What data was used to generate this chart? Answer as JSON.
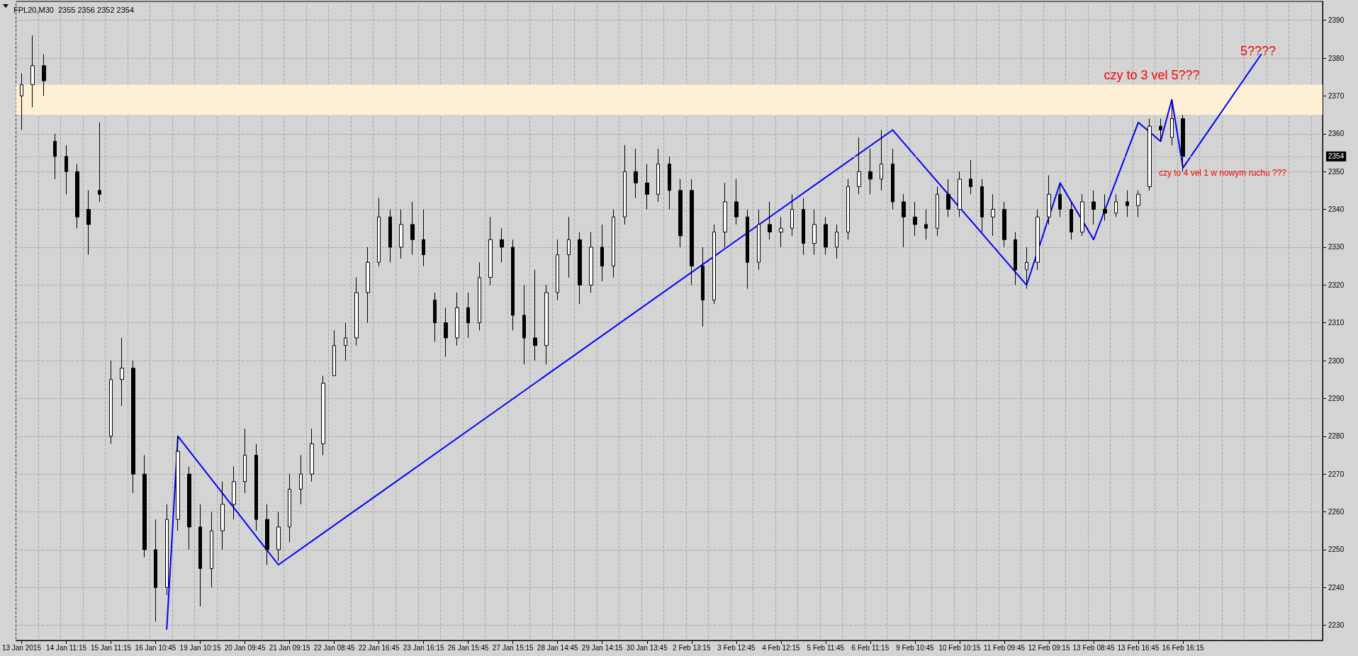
{
  "chart_data": {
    "type": "candlestick",
    "title": "FPL20,M30  2355 2356 2352 2354",
    "categories": [
      "13 Jan 2015",
      null,
      null,
      null,
      "14 Jan 11:15",
      null,
      null,
      null,
      "15 Jan 11:15",
      null,
      null,
      null,
      "16 Jan 10:45",
      null,
      null,
      null,
      "19 Jan 10:15",
      null,
      null,
      null,
      "20 Jan 09:45",
      null,
      null,
      null,
      "21 Jan 09:15",
      null,
      null,
      null,
      "22 Jan 08:45",
      null,
      null,
      null,
      "22 Jan 16:45",
      null,
      null,
      null,
      "23 Jan 16:15",
      null,
      null,
      null,
      "26 Jan 15:45",
      null,
      null,
      null,
      "27 Jan 15:15",
      null,
      null,
      null,
      "28 Jan 14:45",
      null,
      null,
      null,
      "29 Jan 14:15",
      null,
      null,
      null,
      "30 Jan 13:45",
      null,
      null,
      null,
      "2 Feb 13:15",
      null,
      null,
      null,
      "3 Feb 12:45",
      null,
      null,
      null,
      "4 Feb 12:15",
      null,
      null,
      null,
      "5 Feb 11:45",
      null,
      null,
      null,
      "6 Feb 11:15",
      null,
      null,
      null,
      "9 Feb 10:45",
      null,
      null,
      null,
      "10 Feb 10:15",
      null,
      null,
      null,
      "11 Feb 09:45",
      null,
      null,
      null,
      "12 Feb 09:15",
      null,
      null,
      null,
      "13 Feb 08:45",
      null,
      null,
      null,
      "13 Feb 16:45",
      null,
      null,
      null,
      "16 Feb 16:15",
      null,
      null,
      null,
      null,
      null,
      null,
      null,
      null,
      null,
      null,
      null,
      null
    ],
    "series": [
      {
        "color": "#000000",
        "ohlc": [
          [
            2370,
            2376,
            2361,
            2373
          ],
          [
            2373,
            2386,
            2367,
            2378
          ],
          [
            2378,
            2381,
            2370,
            2374
          ],
          [
            2358,
            2360,
            2348,
            2354
          ],
          [
            2354,
            2357,
            2344,
            2350
          ],
          [
            2350,
            2352,
            2335,
            2338
          ],
          [
            2340,
            2345,
            2328,
            2336
          ],
          [
            2345,
            2363,
            2342,
            2344
          ],
          [
            2280,
            2300,
            2278,
            2295
          ],
          [
            2295,
            2306,
            2288,
            2298
          ],
          [
            2298,
            2300,
            2265,
            2270
          ],
          [
            2270,
            2275,
            2248,
            2250
          ],
          [
            2250,
            2258,
            2231,
            2240
          ],
          [
            2240,
            2262,
            2238,
            2258
          ],
          [
            2258,
            2280,
            2255,
            2276
          ],
          [
            2270,
            2272,
            2250,
            2256
          ],
          [
            2256,
            2262,
            2235,
            2245
          ],
          [
            2245,
            2260,
            2240,
            2255
          ],
          [
            2255,
            2268,
            2250,
            2262
          ],
          [
            2262,
            2272,
            2258,
            2268
          ],
          [
            2268,
            2282,
            2265,
            2275
          ],
          [
            2275,
            2278,
            2255,
            2258
          ],
          [
            2258,
            2262,
            2246,
            2250
          ],
          [
            2250,
            2260,
            2247,
            2256
          ],
          [
            2256,
            2270,
            2252,
            2266
          ],
          [
            2266,
            2275,
            2262,
            2270
          ],
          [
            2270,
            2282,
            2268,
            2278
          ],
          [
            2278,
            2296,
            2275,
            2294
          ],
          [
            2296,
            2308,
            2296,
            2304
          ],
          [
            2304,
            2310,
            2300,
            2306
          ],
          [
            2306,
            2322,
            2304,
            2318
          ],
          [
            2318,
            2330,
            2310,
            2326
          ],
          [
            2326,
            2343,
            2325,
            2338
          ],
          [
            2338,
            2340,
            2326,
            2330
          ],
          [
            2330,
            2340,
            2327,
            2336
          ],
          [
            2336,
            2342,
            2328,
            2332
          ],
          [
            2332,
            2340,
            2325,
            2328
          ],
          [
            2316,
            2318,
            2305,
            2310
          ],
          [
            2310,
            2314,
            2301,
            2306
          ],
          [
            2306,
            2318,
            2304,
            2314
          ],
          [
            2314,
            2318,
            2306,
            2310
          ],
          [
            2310,
            2326,
            2308,
            2322
          ],
          [
            2322,
            2338,
            2320,
            2332
          ],
          [
            2332,
            2335,
            2326,
            2330
          ],
          [
            2330,
            2332,
            2308,
            2312
          ],
          [
            2312,
            2320,
            2299,
            2306
          ],
          [
            2306,
            2324,
            2300,
            2304
          ],
          [
            2304,
            2320,
            2299,
            2318
          ],
          [
            2318,
            2332,
            2316,
            2328
          ],
          [
            2328,
            2338,
            2322,
            2332
          ],
          [
            2332,
            2334,
            2315,
            2320
          ],
          [
            2320,
            2334,
            2318,
            2330
          ],
          [
            2330,
            2336,
            2321,
            2325
          ],
          [
            2325,
            2340,
            2322,
            2338
          ],
          [
            2338,
            2357,
            2336,
            2350
          ],
          [
            2350,
            2356,
            2343,
            2347
          ],
          [
            2347,
            2352,
            2340,
            2344
          ],
          [
            2344,
            2356,
            2342,
            2352
          ],
          [
            2352,
            2354,
            2340,
            2345
          ],
          [
            2345,
            2348,
            2330,
            2333
          ],
          [
            2345,
            2348,
            2320,
            2325
          ],
          [
            2325,
            2330,
            2309,
            2316
          ],
          [
            2316,
            2336,
            2315,
            2334
          ],
          [
            2334,
            2347,
            2330,
            2342
          ],
          [
            2342,
            2348,
            2336,
            2338
          ],
          [
            2338,
            2340,
            2319,
            2326
          ],
          [
            2326,
            2340,
            2324,
            2336
          ],
          [
            2336,
            2342,
            2332,
            2334
          ],
          [
            2334,
            2338,
            2330,
            2335
          ],
          [
            2335,
            2344,
            2333,
            2340
          ],
          [
            2340,
            2343,
            2328,
            2331
          ],
          [
            2331,
            2340,
            2328,
            2336
          ],
          [
            2336,
            2338,
            2328,
            2330
          ],
          [
            2330,
            2336,
            2327,
            2334
          ],
          [
            2334,
            2348,
            2332,
            2346
          ],
          [
            2346,
            2359,
            2344,
            2350
          ],
          [
            2350,
            2356,
            2344,
            2348
          ],
          [
            2348,
            2361,
            2345,
            2352
          ],
          [
            2352,
            2356,
            2340,
            2342
          ],
          [
            2342,
            2344,
            2330,
            2338
          ],
          [
            2338,
            2342,
            2333,
            2336
          ],
          [
            2336,
            2340,
            2332,
            2335
          ],
          [
            2335,
            2346,
            2333,
            2344
          ],
          [
            2344,
            2348,
            2338,
            2340
          ],
          [
            2340,
            2350,
            2338,
            2348
          ],
          [
            2348,
            2353,
            2344,
            2346
          ],
          [
            2346,
            2348,
            2334,
            2338
          ],
          [
            2338,
            2344,
            2333,
            2340
          ],
          [
            2340,
            2342,
            2330,
            2332
          ],
          [
            2332,
            2334,
            2320,
            2324
          ],
          [
            2324,
            2330,
            2319,
            2326
          ],
          [
            2326,
            2340,
            2324,
            2338
          ],
          [
            2338,
            2349,
            2336,
            2344
          ],
          [
            2344,
            2347,
            2338,
            2340
          ],
          [
            2340,
            2342,
            2332,
            2334
          ],
          [
            2334,
            2344,
            2333,
            2342
          ],
          [
            2342,
            2345,
            2336,
            2340
          ],
          [
            2340,
            2344,
            2337,
            2339
          ],
          [
            2339,
            2344,
            2338,
            2342
          ],
          [
            2342,
            2345,
            2338,
            2341
          ],
          [
            2341,
            2345,
            2338,
            2344
          ],
          [
            2346,
            2364,
            2345,
            2362
          ],
          [
            2362,
            2364,
            2358,
            2361
          ],
          [
            2359,
            2369,
            2357,
            2364
          ],
          [
            2364,
            2365,
            2350,
            2354
          ],
          null,
          null,
          null,
          null,
          null,
          null,
          null,
          null,
          null,
          null,
          null,
          null
        ]
      },
      {
        "type": "line",
        "color": "#0000ff",
        "values": [
          null,
          null,
          null,
          null,
          null,
          null,
          null,
          null,
          null,
          null,
          null,
          null,
          null,
          2229,
          2280,
          null,
          null,
          null,
          null,
          null,
          null,
          null,
          null,
          2246,
          null,
          null,
          null,
          null,
          null,
          null,
          null,
          null,
          null,
          null,
          null,
          null,
          null,
          null,
          null,
          null,
          null,
          null,
          null,
          null,
          null,
          null,
          null,
          null,
          null,
          null,
          null,
          null,
          null,
          null,
          null,
          null,
          null,
          null,
          null,
          null,
          null,
          null,
          null,
          null,
          null,
          null,
          null,
          null,
          null,
          null,
          null,
          null,
          null,
          null,
          null,
          null,
          null,
          null,
          2361,
          null,
          null,
          null,
          null,
          null,
          null,
          null,
          null,
          null,
          null,
          null,
          2320,
          null,
          null,
          2347,
          null,
          null,
          2332,
          null,
          null,
          null,
          2363,
          null,
          2358,
          2369,
          2351,
          null,
          null,
          null,
          null,
          null,
          null,
          2381,
          null,
          null,
          null,
          null,
          null
        ]
      }
    ],
    "ylim": [
      2226,
      2395
    ],
    "yticks": [
      2230,
      2240,
      2250,
      2260,
      2270,
      2280,
      2290,
      2300,
      2310,
      2320,
      2330,
      2340,
      2350,
      2360,
      2370,
      2380,
      2390
    ],
    "grid": true,
    "marker": "none",
    "bands": [
      {
        "axis": "y",
        "from": 2365,
        "to": 2373,
        "color": "#ffefd5"
      }
    ],
    "ref_lines": [
      {
        "axis": "y",
        "value": 2354,
        "label": "2354",
        "color": "#bcbcbc"
      }
    ],
    "annotations": [
      "czy to 3 vel 5???",
      "czy to 4 vel 1 w nowym ruchu ???",
      "5????"
    ]
  }
}
